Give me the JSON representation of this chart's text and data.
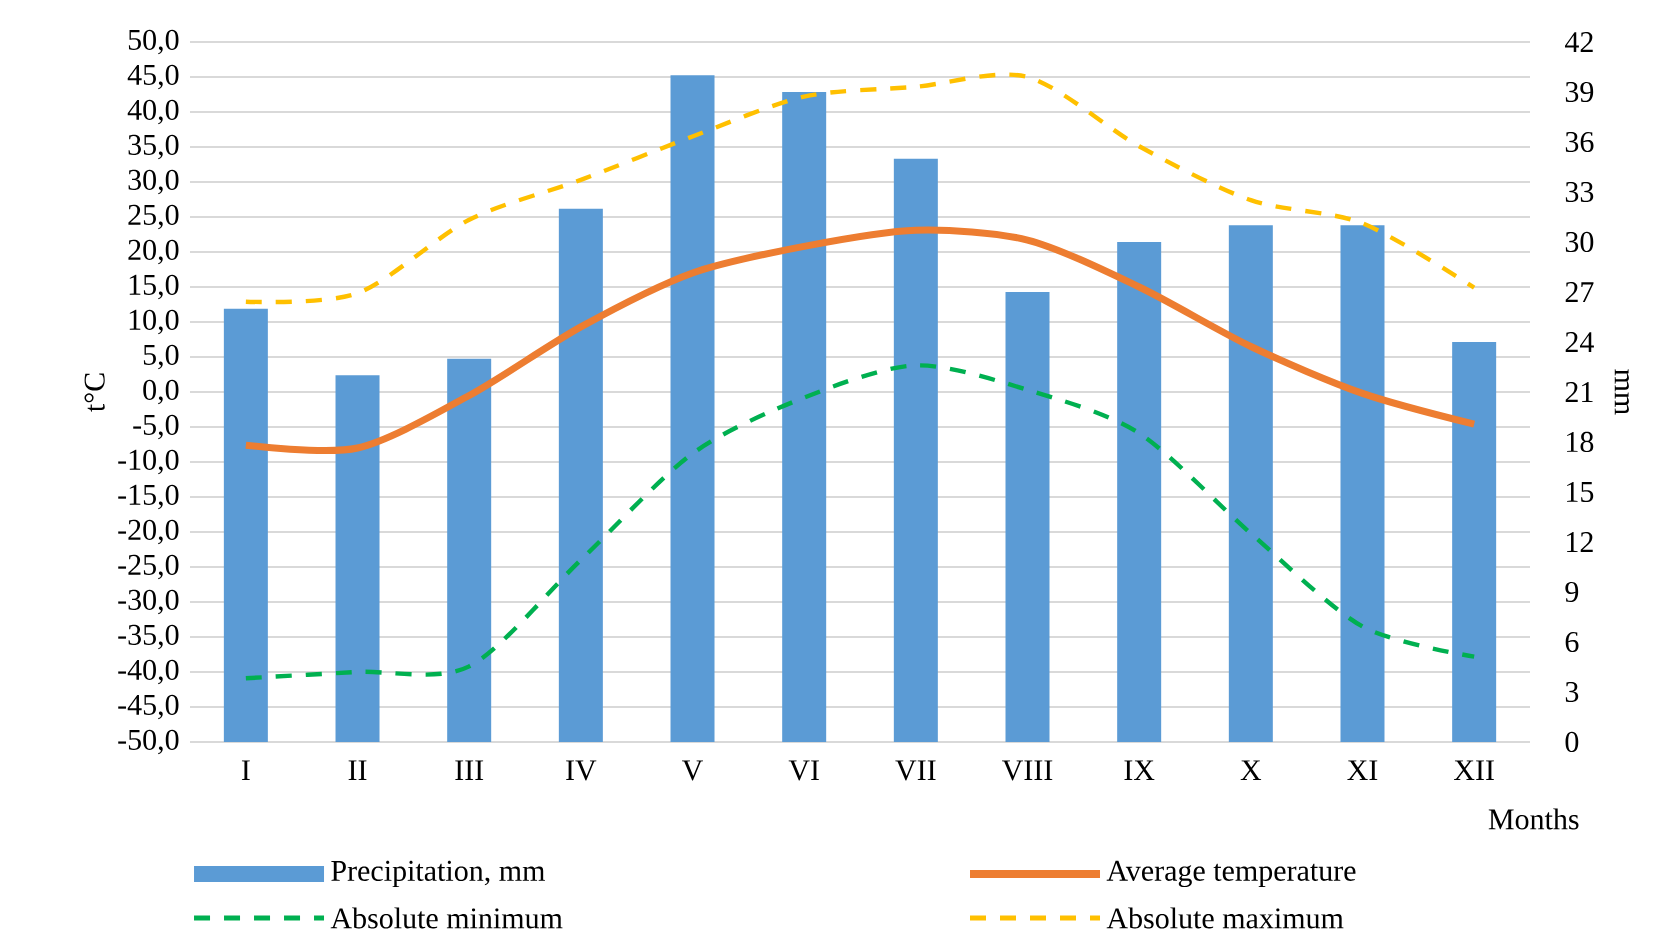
{
  "chart_data": {
    "type": "line",
    "xlabel": "Months",
    "ylabel": "t°C",
    "y2label": "mm",
    "categories": [
      "I",
      "II",
      "III",
      "IV",
      "V",
      "VI",
      "VII",
      "VIII",
      "IX",
      "X",
      "XI",
      "XII"
    ],
    "series": [
      {
        "name": "Precipitation, mm",
        "type": "bar",
        "axis": "y2",
        "color": "#5b9bd5",
        "values": [
          26,
          22,
          23,
          32,
          40,
          39,
          35,
          27,
          30,
          31,
          31,
          24
        ]
      },
      {
        "name": "Average temperature",
        "color": "#ed7d31",
        "line_style": "solid",
        "values": [
          -7.6,
          -8,
          -0.5,
          9.3,
          17,
          20.8,
          23.1,
          21.7,
          15,
          6.5,
          -0.2,
          -4.6
        ]
      },
      {
        "name": "Absolute minimum",
        "color": "#00b050",
        "line_style": "dashed",
        "values": [
          -40.9,
          -40,
          -39.2,
          -24,
          -8.8,
          -0.8,
          3.8,
          0.3,
          -5.9,
          -20.2,
          -33.5,
          -37.8
        ]
      },
      {
        "name": "Absolute maximum",
        "color": "#ffc000",
        "line_style": "dashed",
        "values": [
          12.9,
          14.1,
          24.6,
          30.3,
          36.5,
          42.2,
          43.6,
          45,
          35.1,
          27.4,
          24.1,
          14.9
        ]
      }
    ],
    "ylim": [
      -50,
      50
    ],
    "yticks": [
      {
        "value": -50,
        "label": "-50,0"
      },
      {
        "value": -45,
        "label": "-45,0"
      },
      {
        "value": -40,
        "label": "-40,0"
      },
      {
        "value": -35,
        "label": "-35,0"
      },
      {
        "value": -30,
        "label": "-30,0"
      },
      {
        "value": -25,
        "label": "-25,0"
      },
      {
        "value": -20,
        "label": "-20,0"
      },
      {
        "value": -15,
        "label": "-15,0"
      },
      {
        "value": -10,
        "label": "-10,0"
      },
      {
        "value": -5,
        "label": "-5,0"
      },
      {
        "value": 0,
        "label": "0,0"
      },
      {
        "value": 5,
        "label": "5,0"
      },
      {
        "value": 10,
        "label": "10,0"
      },
      {
        "value": 15,
        "label": "15,0"
      },
      {
        "value": 20,
        "label": "20,0"
      },
      {
        "value": 25,
        "label": "25,0"
      },
      {
        "value": 30,
        "label": "30,0"
      },
      {
        "value": 35,
        "label": "35,0"
      },
      {
        "value": 40,
        "label": "40,0"
      },
      {
        "value": 45,
        "label": "45,0"
      },
      {
        "value": 50,
        "label": "50,0"
      }
    ],
    "y2lim": [
      0,
      42
    ],
    "y2ticks": [
      0,
      3,
      6,
      9,
      12,
      15,
      18,
      21,
      24,
      27,
      30,
      33,
      36,
      39,
      42
    ],
    "grid": "y",
    "legend": "bottom"
  }
}
